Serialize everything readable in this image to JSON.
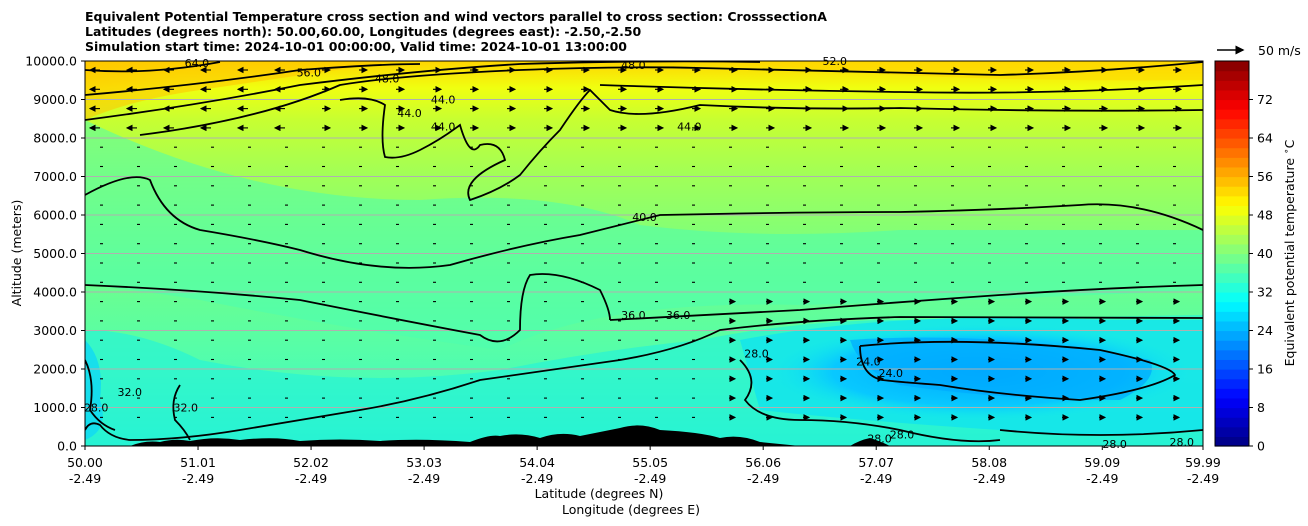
{
  "chart_data": {
    "type": "heatmap",
    "title_lines": [
      "Equivalent Potential Temperature cross section and wind vectors parallel to cross section: CrosssectionA",
      "Latitudes (degrees north): 50.00,60.00, Longitudes (degrees east): -2.50,-2.50",
      "Simulation start time: 2024-10-01 00:00:00, Valid time: 2024-10-01 13:00:00"
    ],
    "ylabel": "Altitude (meters)",
    "xlabel_lines": [
      "Latitude (degrees N)",
      "Longitude (degrees E)"
    ],
    "ylim": [
      0,
      10000
    ],
    "y_ticks": [
      "0.0",
      "1000.0",
      "2000.0",
      "3000.0",
      "4000.0",
      "5000.0",
      "6000.0",
      "7000.0",
      "8000.0",
      "9000.0",
      "10000.0"
    ],
    "y_tick_values": [
      0,
      1000,
      2000,
      3000,
      4000,
      5000,
      6000,
      7000,
      8000,
      9000,
      10000
    ],
    "x_ticks": [
      {
        "lat": "50.00",
        "lon": "-2.49"
      },
      {
        "lat": "51.01",
        "lon": "-2.49"
      },
      {
        "lat": "52.02",
        "lon": "-2.49"
      },
      {
        "lat": "53.03",
        "lon": "-2.49"
      },
      {
        "lat": "54.04",
        "lon": "-2.49"
      },
      {
        "lat": "55.05",
        "lon": "-2.49"
      },
      {
        "lat": "56.06",
        "lon": "-2.49"
      },
      {
        "lat": "57.07",
        "lon": "-2.49"
      },
      {
        "lat": "58.08",
        "lon": "-2.49"
      },
      {
        "lat": "59.09",
        "lon": "-2.49"
      },
      {
        "lat": "59.99",
        "lon": "-2.49"
      }
    ],
    "grid": "horizontal",
    "colorbar": {
      "label": "Equivalent potential temperature $^\\circ$C",
      "range": [
        0,
        80
      ],
      "step": 2,
      "ticks": [
        "0",
        "8",
        "16",
        "24",
        "32",
        "40",
        "48",
        "56",
        "64",
        "72"
      ],
      "tick_values": [
        0,
        8,
        16,
        24,
        32,
        40,
        48,
        56,
        64,
        72
      ],
      "colormap": "jet"
    },
    "quiver_key": {
      "label": "50 m/s"
    },
    "contour_labels": [
      {
        "text": "64.0",
        "lat": 51.0,
        "alt": 9950
      },
      {
        "text": "56.0",
        "lat": 52.0,
        "alt": 9700
      },
      {
        "text": "48.0",
        "lat": 52.7,
        "alt": 9550
      },
      {
        "text": "48.0",
        "lat": 54.9,
        "alt": 9900
      },
      {
        "text": "52.0",
        "lat": 56.7,
        "alt": 10000
      },
      {
        "text": "44.0",
        "lat": 53.2,
        "alt": 9000
      },
      {
        "text": "44.0",
        "lat": 52.9,
        "alt": 8650
      },
      {
        "text": "44.0",
        "lat": 53.2,
        "alt": 8300
      },
      {
        "text": "44.0",
        "lat": 55.4,
        "alt": 8300
      },
      {
        "text": "40.0",
        "lat": 55.0,
        "alt": 5950
      },
      {
        "text": "36.0",
        "lat": 54.9,
        "alt": 3400
      },
      {
        "text": "36.0",
        "lat": 55.3,
        "alt": 3400
      },
      {
        "text": "28.0",
        "lat": 56.0,
        "alt": 2400
      },
      {
        "text": "24.0",
        "lat": 57.0,
        "alt": 2200
      },
      {
        "text": "24.0",
        "lat": 57.2,
        "alt": 1900
      },
      {
        "text": "32.0",
        "lat": 50.4,
        "alt": 1400
      },
      {
        "text": "28.0",
        "lat": 50.1,
        "alt": 1000
      },
      {
        "text": "32.0",
        "lat": 50.9,
        "alt": 1000
      },
      {
        "text": "28.0",
        "lat": 57.1,
        "alt": 200
      },
      {
        "text": "28.0",
        "lat": 57.3,
        "alt": 300
      },
      {
        "text": "28.0",
        "lat": 59.2,
        "alt": 50
      },
      {
        "text": "28.0",
        "lat": 59.8,
        "alt": 100
      }
    ]
  }
}
